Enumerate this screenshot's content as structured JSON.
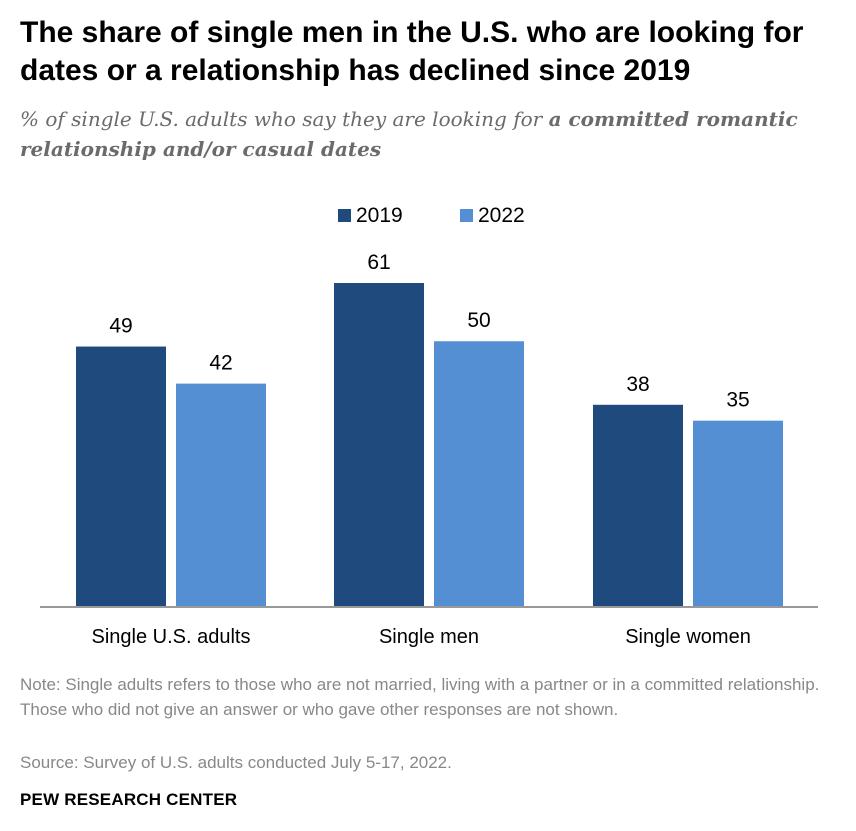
{
  "title": "The share of single men in the U.S. who are looking for dates or a relationship has declined since 2019",
  "subtitle": {
    "prefix": "% of single U.S. adults who say they are looking for ",
    "emphasis": "a committed romantic relationship and/or casual dates"
  },
  "note": "Note: Single adults refers to those who are not married, living with a partner or in a committed relationship. Those who did not give an answer or who gave other responses are not shown.",
  "source": "Source: Survey of U.S. adults conducted July 5-17, 2022.",
  "brand": "PEW RESEARCH CENTER",
  "colors": {
    "series_2019": "#1f4a7e",
    "series_2022": "#548fd3",
    "axis": "#999999",
    "label_text": "#000000"
  },
  "chart_data": {
    "type": "bar",
    "categories": [
      "Single U.S. adults",
      "Single men",
      "Single women"
    ],
    "series": [
      {
        "name": "2019",
        "values": [
          49,
          61,
          38
        ]
      },
      {
        "name": "2022",
        "values": [
          42,
          50,
          35
        ]
      }
    ],
    "ylim": [
      0,
      61
    ],
    "grid": false,
    "legend_position": "top-center",
    "data_labels": true
  }
}
